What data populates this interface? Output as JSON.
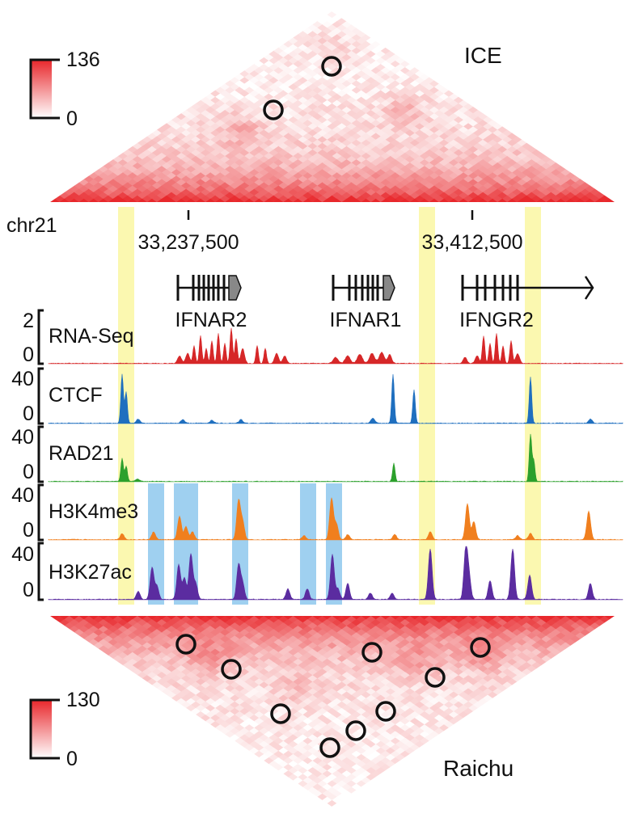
{
  "heatmaps": {
    "top": {
      "title": "ICE",
      "scale_max": "136",
      "scale_min": "0"
    },
    "bottom": {
      "title": "Raichu",
      "scale_max": "130",
      "scale_min": "0"
    },
    "colors": {
      "low": "#ffffff",
      "high": "#e8272b"
    }
  },
  "chromosome": {
    "label": "chr21",
    "ticks": [
      "33,237,500",
      "33,412,500"
    ]
  },
  "genes": [
    "IFNAR2",
    "IFNAR1",
    "IFNGR2"
  ],
  "tracks": [
    {
      "label": "RNA-Seq",
      "max": "2",
      "min": "0",
      "color": "#d62728"
    },
    {
      "label": "CTCF",
      "max": "40",
      "min": "0",
      "color": "#1f6fbf"
    },
    {
      "label": "RAD21",
      "max": "40",
      "min": "0",
      "color": "#2ca02c"
    },
    {
      "label": "H3K4me3",
      "max": "40",
      "min": "0",
      "color": "#f07f1e"
    },
    {
      "label": "H3K27ac",
      "max": "40",
      "min": "0",
      "color": "#5b2ca0"
    }
  ],
  "highlight_colors": {
    "yellow": "#fbf8b0",
    "blue": "#9fd0f0"
  }
}
